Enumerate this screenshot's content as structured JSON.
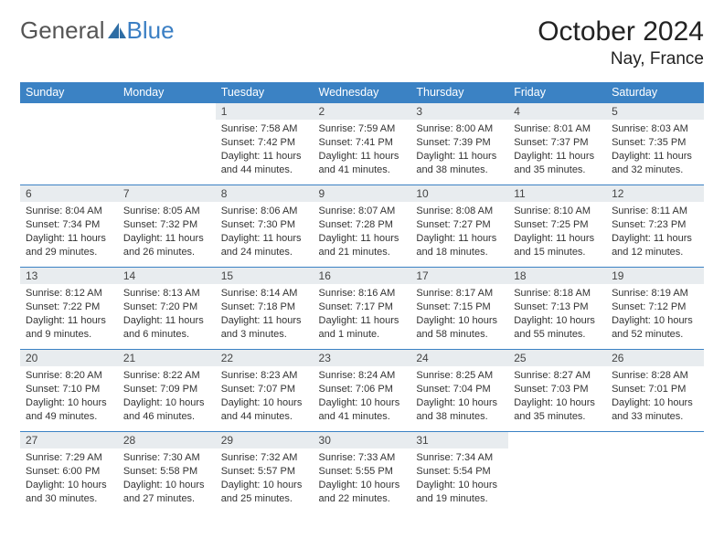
{
  "brand": {
    "word1": "General",
    "word2": "Blue"
  },
  "title": "October 2024",
  "location": "Nay, France",
  "colors": {
    "header_bg": "#3b82c4",
    "header_text": "#ffffff",
    "daynum_bg": "#e8ecef",
    "row_border": "#3b82c4",
    "brand_blue": "#3b7fc4",
    "page_bg": "#ffffff",
    "text": "#333333"
  },
  "day_headers": [
    "Sunday",
    "Monday",
    "Tuesday",
    "Wednesday",
    "Thursday",
    "Friday",
    "Saturday"
  ],
  "weeks": [
    [
      null,
      null,
      {
        "n": "1",
        "sr": "Sunrise: 7:58 AM",
        "ss": "Sunset: 7:42 PM",
        "dl": "Daylight: 11 hours and 44 minutes."
      },
      {
        "n": "2",
        "sr": "Sunrise: 7:59 AM",
        "ss": "Sunset: 7:41 PM",
        "dl": "Daylight: 11 hours and 41 minutes."
      },
      {
        "n": "3",
        "sr": "Sunrise: 8:00 AM",
        "ss": "Sunset: 7:39 PM",
        "dl": "Daylight: 11 hours and 38 minutes."
      },
      {
        "n": "4",
        "sr": "Sunrise: 8:01 AM",
        "ss": "Sunset: 7:37 PM",
        "dl": "Daylight: 11 hours and 35 minutes."
      },
      {
        "n": "5",
        "sr": "Sunrise: 8:03 AM",
        "ss": "Sunset: 7:35 PM",
        "dl": "Daylight: 11 hours and 32 minutes."
      }
    ],
    [
      {
        "n": "6",
        "sr": "Sunrise: 8:04 AM",
        "ss": "Sunset: 7:34 PM",
        "dl": "Daylight: 11 hours and 29 minutes."
      },
      {
        "n": "7",
        "sr": "Sunrise: 8:05 AM",
        "ss": "Sunset: 7:32 PM",
        "dl": "Daylight: 11 hours and 26 minutes."
      },
      {
        "n": "8",
        "sr": "Sunrise: 8:06 AM",
        "ss": "Sunset: 7:30 PM",
        "dl": "Daylight: 11 hours and 24 minutes."
      },
      {
        "n": "9",
        "sr": "Sunrise: 8:07 AM",
        "ss": "Sunset: 7:28 PM",
        "dl": "Daylight: 11 hours and 21 minutes."
      },
      {
        "n": "10",
        "sr": "Sunrise: 8:08 AM",
        "ss": "Sunset: 7:27 PM",
        "dl": "Daylight: 11 hours and 18 minutes."
      },
      {
        "n": "11",
        "sr": "Sunrise: 8:10 AM",
        "ss": "Sunset: 7:25 PM",
        "dl": "Daylight: 11 hours and 15 minutes."
      },
      {
        "n": "12",
        "sr": "Sunrise: 8:11 AM",
        "ss": "Sunset: 7:23 PM",
        "dl": "Daylight: 11 hours and 12 minutes."
      }
    ],
    [
      {
        "n": "13",
        "sr": "Sunrise: 8:12 AM",
        "ss": "Sunset: 7:22 PM",
        "dl": "Daylight: 11 hours and 9 minutes."
      },
      {
        "n": "14",
        "sr": "Sunrise: 8:13 AM",
        "ss": "Sunset: 7:20 PM",
        "dl": "Daylight: 11 hours and 6 minutes."
      },
      {
        "n": "15",
        "sr": "Sunrise: 8:14 AM",
        "ss": "Sunset: 7:18 PM",
        "dl": "Daylight: 11 hours and 3 minutes."
      },
      {
        "n": "16",
        "sr": "Sunrise: 8:16 AM",
        "ss": "Sunset: 7:17 PM",
        "dl": "Daylight: 11 hours and 1 minute."
      },
      {
        "n": "17",
        "sr": "Sunrise: 8:17 AM",
        "ss": "Sunset: 7:15 PM",
        "dl": "Daylight: 10 hours and 58 minutes."
      },
      {
        "n": "18",
        "sr": "Sunrise: 8:18 AM",
        "ss": "Sunset: 7:13 PM",
        "dl": "Daylight: 10 hours and 55 minutes."
      },
      {
        "n": "19",
        "sr": "Sunrise: 8:19 AM",
        "ss": "Sunset: 7:12 PM",
        "dl": "Daylight: 10 hours and 52 minutes."
      }
    ],
    [
      {
        "n": "20",
        "sr": "Sunrise: 8:20 AM",
        "ss": "Sunset: 7:10 PM",
        "dl": "Daylight: 10 hours and 49 minutes."
      },
      {
        "n": "21",
        "sr": "Sunrise: 8:22 AM",
        "ss": "Sunset: 7:09 PM",
        "dl": "Daylight: 10 hours and 46 minutes."
      },
      {
        "n": "22",
        "sr": "Sunrise: 8:23 AM",
        "ss": "Sunset: 7:07 PM",
        "dl": "Daylight: 10 hours and 44 minutes."
      },
      {
        "n": "23",
        "sr": "Sunrise: 8:24 AM",
        "ss": "Sunset: 7:06 PM",
        "dl": "Daylight: 10 hours and 41 minutes."
      },
      {
        "n": "24",
        "sr": "Sunrise: 8:25 AM",
        "ss": "Sunset: 7:04 PM",
        "dl": "Daylight: 10 hours and 38 minutes."
      },
      {
        "n": "25",
        "sr": "Sunrise: 8:27 AM",
        "ss": "Sunset: 7:03 PM",
        "dl": "Daylight: 10 hours and 35 minutes."
      },
      {
        "n": "26",
        "sr": "Sunrise: 8:28 AM",
        "ss": "Sunset: 7:01 PM",
        "dl": "Daylight: 10 hours and 33 minutes."
      }
    ],
    [
      {
        "n": "27",
        "sr": "Sunrise: 7:29 AM",
        "ss": "Sunset: 6:00 PM",
        "dl": "Daylight: 10 hours and 30 minutes."
      },
      {
        "n": "28",
        "sr": "Sunrise: 7:30 AM",
        "ss": "Sunset: 5:58 PM",
        "dl": "Daylight: 10 hours and 27 minutes."
      },
      {
        "n": "29",
        "sr": "Sunrise: 7:32 AM",
        "ss": "Sunset: 5:57 PM",
        "dl": "Daylight: 10 hours and 25 minutes."
      },
      {
        "n": "30",
        "sr": "Sunrise: 7:33 AM",
        "ss": "Sunset: 5:55 PM",
        "dl": "Daylight: 10 hours and 22 minutes."
      },
      {
        "n": "31",
        "sr": "Sunrise: 7:34 AM",
        "ss": "Sunset: 5:54 PM",
        "dl": "Daylight: 10 hours and 19 minutes."
      },
      null,
      null
    ]
  ]
}
